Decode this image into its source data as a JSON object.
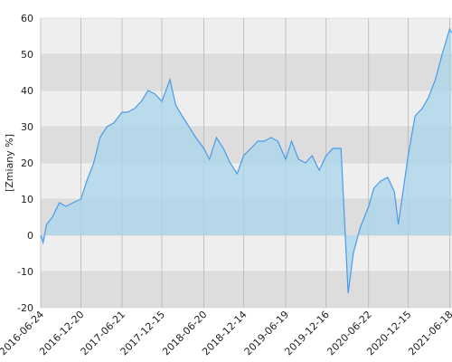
{
  "chart_data": {
    "type": "area",
    "y_label": "[Zmiany %]",
    "x": [
      "2016-06-24",
      "2016-07-05",
      "2016-07-20",
      "2016-08-15",
      "2016-09-15",
      "2016-10-15",
      "2016-11-15",
      "2016-12-20",
      "2017-01-15",
      "2017-02-15",
      "2017-03-15",
      "2017-04-15",
      "2017-05-15",
      "2017-06-21",
      "2017-07-15",
      "2017-08-15",
      "2017-09-15",
      "2017-10-15",
      "2017-11-15",
      "2017-12-15",
      "2018-01-20",
      "2018-02-15",
      "2018-03-15",
      "2018-04-15",
      "2018-05-15",
      "2018-06-20",
      "2018-07-15",
      "2018-08-15",
      "2018-09-15",
      "2018-10-15",
      "2018-11-15",
      "2018-12-14",
      "2019-01-15",
      "2019-02-15",
      "2019-03-15",
      "2019-04-15",
      "2019-05-15",
      "2019-06-19",
      "2019-07-15",
      "2019-08-15",
      "2019-09-15",
      "2019-10-15",
      "2019-11-15",
      "2019-12-16",
      "2020-01-15",
      "2020-02-20",
      "2020-03-23",
      "2020-04-15",
      "2020-05-15",
      "2020-06-22",
      "2020-07-15",
      "2020-08-15",
      "2020-09-15",
      "2020-10-15",
      "2020-11-01",
      "2020-12-15",
      "2021-01-15",
      "2021-02-15",
      "2021-03-15",
      "2021-04-15",
      "2021-05-15",
      "2021-06-18",
      "2021-06-25"
    ],
    "values": [
      0,
      -2,
      3,
      5,
      9,
      8,
      9,
      10,
      15,
      20,
      27,
      30,
      31,
      34,
      34,
      35,
      37,
      40,
      39,
      37,
      43,
      36,
      33,
      30,
      27,
      24,
      21,
      27,
      24,
      20,
      17,
      22,
      24,
      26,
      26,
      27,
      26,
      21,
      26,
      21,
      20,
      22,
      18,
      22,
      24,
      24,
      -16,
      -5,
      2,
      8,
      13,
      15,
      16,
      12,
      3,
      22,
      33,
      35,
      38,
      43,
      50,
      57,
      56
    ],
    "color": "#4a9be8",
    "fill": "#a8d4ea",
    "xlim": [
      "2016-06-24",
      "2021-06-28"
    ],
    "xticks": [
      "2016-06-24",
      "2016-12-20",
      "2017-06-21",
      "2017-12-15",
      "2018-06-20",
      "2018-12-14",
      "2019-06-19",
      "2019-12-16",
      "2020-06-22",
      "2020-12-15",
      "2021-06-18"
    ],
    "ylim": [
      -20,
      60
    ],
    "yticks": [
      -20,
      -10,
      0,
      10,
      20,
      30,
      40,
      50,
      60
    ],
    "grid": true
  }
}
